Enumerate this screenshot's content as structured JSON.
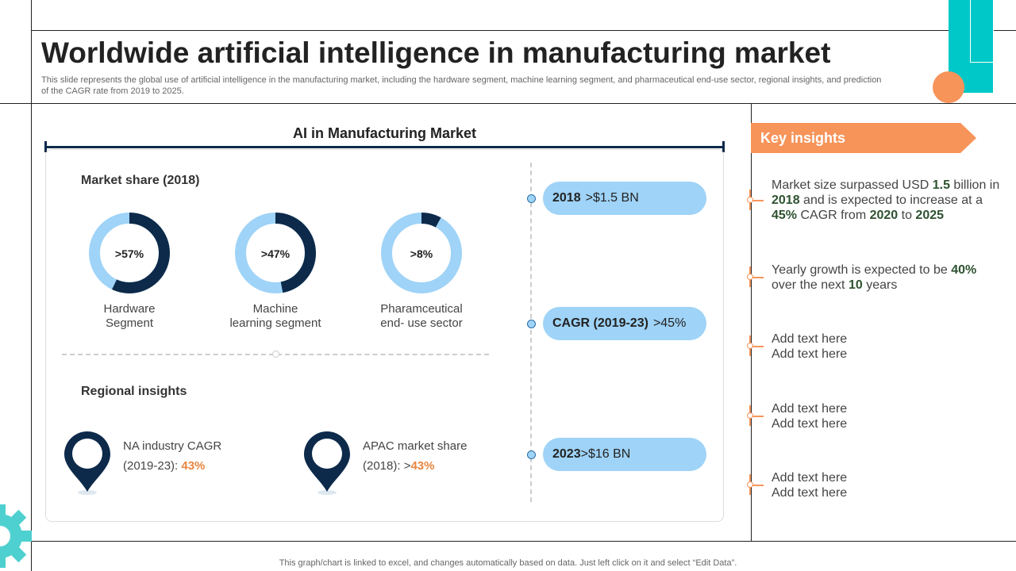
{
  "title": "Worldwide artificial intelligence in manufacturing market",
  "subtitle": "This slide represents the global use of artificial intelligence in the manufacturing market, including the hardware segment, machine learning segment, and pharmaceutical end-use sector, regional insights, and prediction of the CAGR rate from 2019 to 2025.",
  "panel": {
    "title": "AI in Manufacturing Market",
    "market_share_label": "Market share (2018)",
    "donuts": [
      {
        "value": ">57%",
        "fraction": 0.57,
        "caption_line1": "Hardware",
        "caption_line2": "Segment"
      },
      {
        "value": ">47%",
        "fraction": 0.47,
        "caption_line1": "Machine",
        "caption_line2": "learning segment"
      },
      {
        "value": ">8%",
        "fraction": 0.08,
        "caption_line1": "Pharamceutical",
        "caption_line2": "end- use sector"
      }
    ],
    "regional_label": "Regional insights",
    "regions": [
      {
        "line1": "NA industry CAGR",
        "line2_prefix": "(2019-23): ",
        "highlight": "43%"
      },
      {
        "line1": "APAC market share",
        "line2_prefix": "(2018): >",
        "highlight": "43%"
      }
    ],
    "pills": [
      {
        "bold": "2018",
        "text": ">$1.5 BN"
      },
      {
        "bold": "CAGR (2019-23)",
        "text": ">45%"
      },
      {
        "bold": "2023",
        "text": ">$16 BN"
      }
    ]
  },
  "key_insights": {
    "heading": "Key insights",
    "item1": {
      "t1": "Market size surpassed USD ",
      "b1": "1.5",
      "t2": " billion in ",
      "b2": "2018",
      "t3": " and is expected to increase at a ",
      "b3": "45%",
      "t4": " CAGR from ",
      "b4": "2020",
      "t5": " to ",
      "b5": "2025"
    },
    "item2": {
      "t1": "Yearly growth is expected to be ",
      "b1": "40%",
      "t2": " over the next ",
      "b2": "10",
      "t3": " years"
    },
    "placeholders": [
      {
        "line1": "Add text here",
        "line2": "Add text here"
      },
      {
        "line1": "Add text here",
        "line2": "Add text here"
      },
      {
        "line1": "Add text here",
        "line2": "Add text here"
      }
    ]
  },
  "footer": "This graph/chart is linked to excel,  and changes automatically based on data. Just left click on it and select “Edit Data”.",
  "colors": {
    "navy": "#0d2a4a",
    "light_blue": "#9fd3f7",
    "orange": "#f7945a",
    "teal": "#00c8c8"
  }
}
